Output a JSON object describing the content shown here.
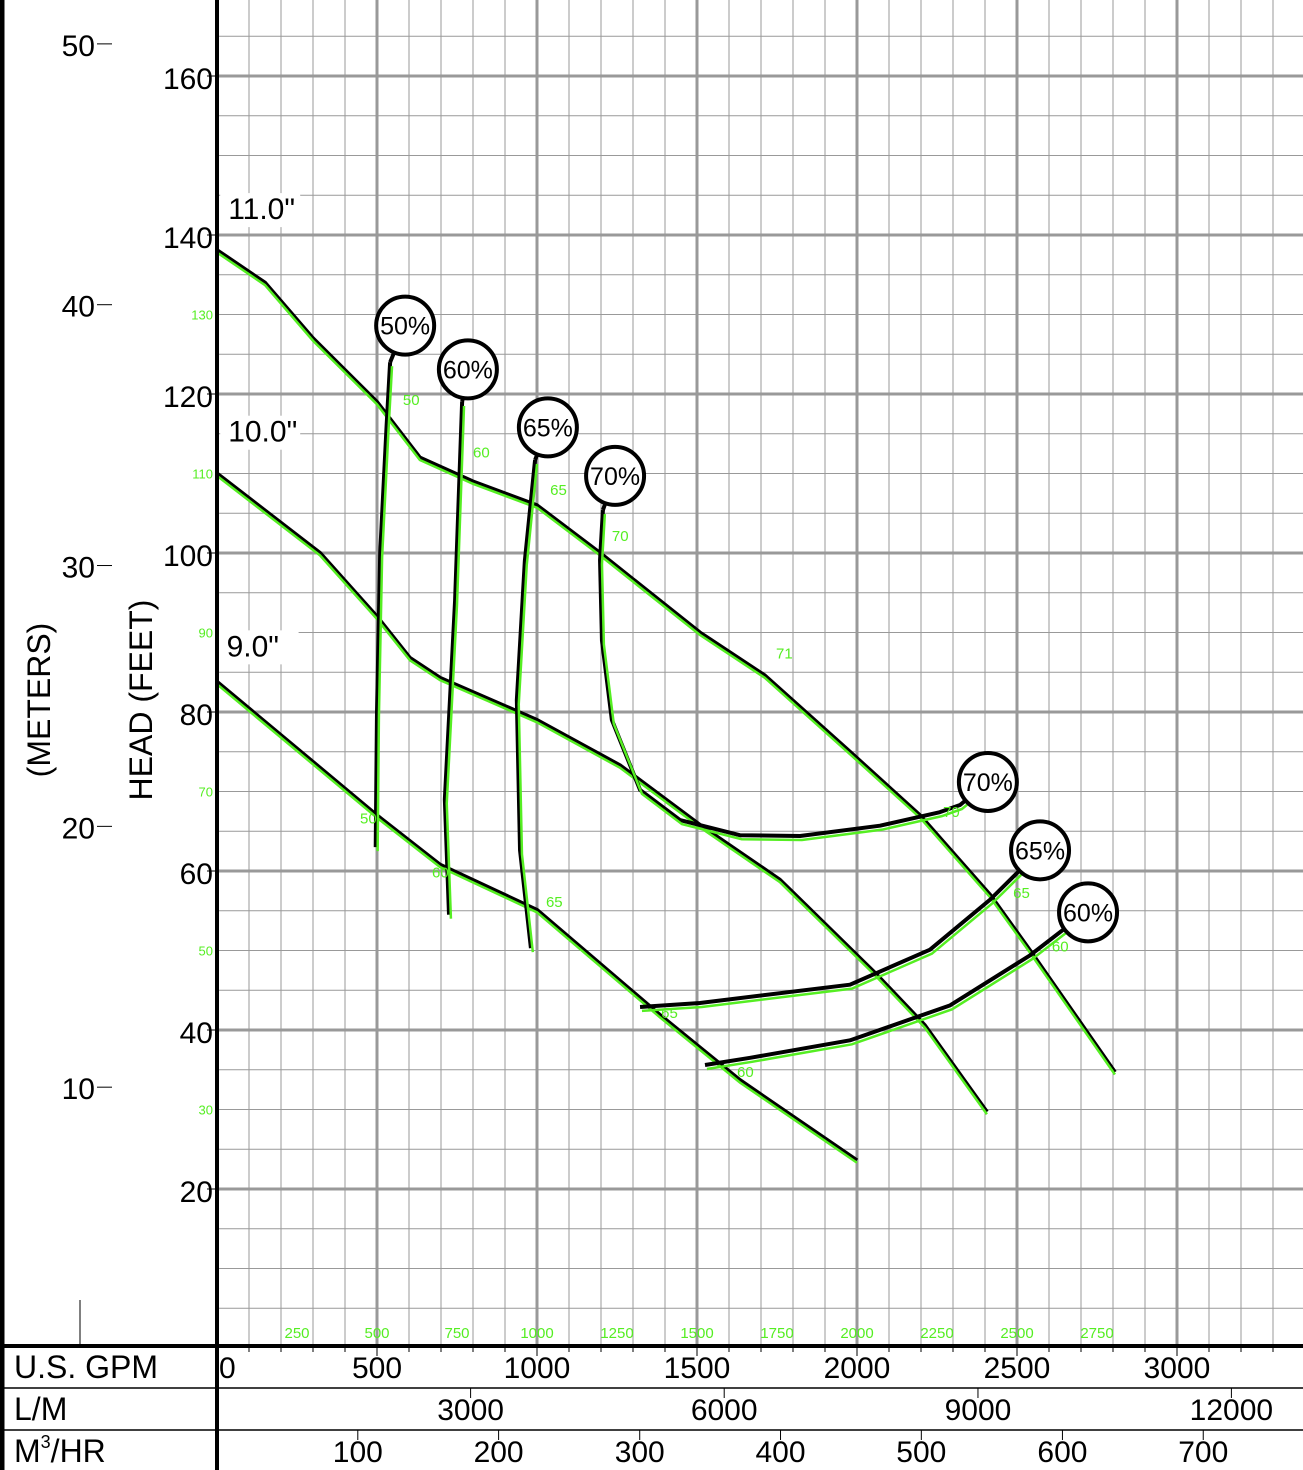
{
  "chart_data": {
    "type": "line",
    "title": "",
    "ylabel": "HEAD (FEET)",
    "ylabel_secondary": "(METERS)",
    "xlim": [
      0,
      3394
    ],
    "ylim": [
      0,
      169.7
    ],
    "grid": true,
    "y_ticks_feet": [
      20,
      40,
      60,
      80,
      100,
      120,
      140,
      160
    ],
    "y_ticks_feet_green": [
      30,
      50,
      70,
      90,
      110,
      130
    ],
    "y_ticks_meters": [
      10,
      20,
      30,
      40,
      50
    ],
    "x_ticks_green": [
      250,
      500,
      750,
      1000,
      1250,
      1500,
      1750,
      2000,
      2250,
      2500,
      2750
    ],
    "scales": [
      {
        "label": "U.S. GPM",
        "label_sup": "",
        "ticks": [
          {
            "text": "0",
            "gpm": 0
          },
          {
            "text": "500",
            "gpm": 500
          },
          {
            "text": "1000",
            "gpm": 1000
          },
          {
            "text": "1500",
            "gpm": 1500
          },
          {
            "text": "2000",
            "gpm": 2000
          },
          {
            "text": "2500",
            "gpm": 2500
          },
          {
            "text": "3000",
            "gpm": 3000
          }
        ]
      },
      {
        "label": "L/M",
        "label_sup": "",
        "ticks": [
          {
            "text": "3000",
            "gpm": 792.5
          },
          {
            "text": "6000",
            "gpm": 1585
          },
          {
            "text": "9000",
            "gpm": 2378
          },
          {
            "text": "12000",
            "gpm": 3170
          }
        ]
      },
      {
        "label": "M",
        "label_sup": "3",
        "label_rest": "/HR",
        "ticks": [
          {
            "text": "100",
            "gpm": 440
          },
          {
            "text": "200",
            "gpm": 880
          },
          {
            "text": "300",
            "gpm": 1321
          },
          {
            "text": "400",
            "gpm": 1761
          },
          {
            "text": "500",
            "gpm": 2201
          },
          {
            "text": "600",
            "gpm": 2642
          },
          {
            "text": "700",
            "gpm": 3082
          }
        ]
      }
    ],
    "colors": {
      "black_curve": "#000000",
      "green_curve": "#55ee22",
      "grid": "#999999"
    },
    "series": [
      {
        "name": "11.0\"",
        "label_at": [
          35,
          142
        ],
        "points": [
          [
            0,
            138.1
          ],
          [
            150,
            134
          ],
          [
            300,
            127
          ],
          [
            500,
            119
          ],
          [
            634,
            112
          ],
          [
            800,
            109
          ],
          [
            1000,
            106
          ],
          [
            1197,
            100
          ],
          [
            1509,
            90
          ],
          [
            1712,
            84.6
          ],
          [
            1978,
            75
          ],
          [
            2197,
            67
          ],
          [
            2416,
            57
          ],
          [
            2541,
            50
          ],
          [
            2806,
            34.7
          ]
        ]
      },
      {
        "name": "10.0\"",
        "label_at": [
          35,
          114
        ],
        "points": [
          [
            0,
            110
          ],
          [
            322,
            100
          ],
          [
            500,
            92
          ],
          [
            603,
            86.8
          ],
          [
            697,
            84.3
          ],
          [
            1000,
            79
          ],
          [
            1259,
            73.3
          ],
          [
            1509,
            65.8
          ],
          [
            1759,
            58.9
          ],
          [
            2056,
            47.2
          ],
          [
            2212,
            40.6
          ],
          [
            2406,
            29.7
          ]
        ]
      },
      {
        "name": "9.0\"",
        "label_at": [
          30,
          87
        ],
        "points": [
          [
            0,
            83.8
          ],
          [
            500,
            67
          ],
          [
            697,
            60.8
          ],
          [
            1000,
            55.1
          ],
          [
            1384,
            41.9
          ],
          [
            1634,
            33.7
          ],
          [
            2000,
            23.6
          ]
        ]
      }
    ],
    "efficiency": [
      {
        "label": "50%",
        "bubble": [
          588,
          128.6
        ],
        "points": [
          [
            541,
            124
          ],
          [
            530,
            116
          ],
          [
            510,
            100
          ],
          [
            500,
            80
          ],
          [
            496,
            63
          ]
        ]
      },
      {
        "label": "60%",
        "bubble": [
          784,
          123.1
        ],
        "points": [
          [
            766,
            119
          ],
          [
            744,
            94
          ],
          [
            712,
            69
          ],
          [
            725,
            54.5
          ]
        ]
      },
      {
        "label": "65%",
        "bubble": [
          1034,
          115.8
        ],
        "points": [
          [
            994,
            111.7
          ],
          [
            962,
            99
          ],
          [
            937,
            81.5
          ],
          [
            947,
            62.6
          ],
          [
            981,
            50.3
          ]
        ]
      },
      {
        "label": "70%",
        "bubble": [
          1244,
          109.7
        ],
        "points": [
          [
            1206,
            105.4
          ],
          [
            1197,
            99.1
          ],
          [
            1203,
            89
          ],
          [
            1234,
            79
          ],
          [
            1322,
            70.2
          ],
          [
            1447,
            66.4
          ],
          [
            1634,
            64.5
          ],
          [
            1822,
            64.4
          ],
          [
            2072,
            65.7
          ],
          [
            2259,
            67.4
          ],
          [
            2322,
            68.3
          ],
          [
            2409,
            71.2
          ]
        ]
      },
      {
        "label": "70%",
        "bubble": [
          2409,
          71.2
        ],
        "points": []
      },
      {
        "label": "65%",
        "bubble": [
          2572,
          62.6
        ],
        "points": [
          [
            1322,
            42.9
          ],
          [
            1509,
            43.4
          ],
          [
            1978,
            45.7
          ],
          [
            2228,
            50.1
          ],
          [
            2416,
            56.4
          ],
          [
            2494,
            59.5
          ],
          [
            2572,
            62.6
          ]
        ]
      },
      {
        "label": "60%",
        "bubble": [
          2722,
          54.8
        ],
        "points": [
          [
            1525,
            35.6
          ],
          [
            1666,
            36.5
          ],
          [
            1978,
            38.7
          ],
          [
            2291,
            43.1
          ],
          [
            2541,
            49.4
          ],
          [
            2644,
            52.6
          ],
          [
            2722,
            54.8
          ]
        ]
      }
    ],
    "point_labels": [
      {
        "text": "50",
        "at": [
          581,
          118.6
        ]
      },
      {
        "text": "60",
        "at": [
          800,
          112
        ]
      },
      {
        "text": "65",
        "at": [
          1041,
          107.3
        ]
      },
      {
        "text": "70",
        "at": [
          1234,
          101.5
        ]
      },
      {
        "text": "71",
        "at": [
          1747,
          86.7
        ]
      },
      {
        "text": "70",
        "at": [
          2269,
          66.8
        ]
      },
      {
        "text": "65",
        "at": [
          2488,
          56.6
        ]
      },
      {
        "text": "60",
        "at": [
          2609,
          49.9
        ]
      },
      {
        "text": "50",
        "at": [
          447,
          66
        ]
      },
      {
        "text": "60",
        "at": [
          672,
          59.2
        ]
      },
      {
        "text": "65",
        "at": [
          1028,
          55.5
        ]
      },
      {
        "text": "65",
        "at": [
          1388,
          41.5
        ]
      },
      {
        "text": "60",
        "at": [
          1625,
          34.1
        ]
      }
    ]
  }
}
